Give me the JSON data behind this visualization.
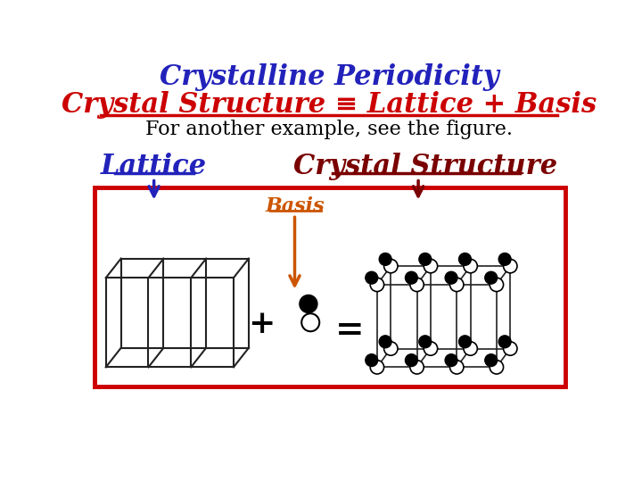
{
  "title1": "Crystalline Periodicity",
  "title2": "Crystal Structure ≡ Lattice + Basis",
  "subtitle": "For another example, see the figure.",
  "label_lattice": "Lattice",
  "label_crystal": "Crystal Structure",
  "label_basis": "Basis",
  "plus_sign": "+",
  "equals_sign": "=",
  "bg_color": "#ffffff",
  "title1_color": "#2222bb",
  "title2_color": "#cc0000",
  "subtitle_color": "#000000",
  "label_lattice_color": "#2222bb",
  "label_crystal_color": "#7a0000",
  "label_basis_color": "#cc5500",
  "arrow_lattice_color": "#2222bb",
  "arrow_crystal_color": "#7a0000",
  "arrow_basis_color": "#cc5500",
  "box_color": "#cc0000",
  "lattice_line_color": "#222222",
  "dot_black": "#111111",
  "dot_white": "#ffffff"
}
